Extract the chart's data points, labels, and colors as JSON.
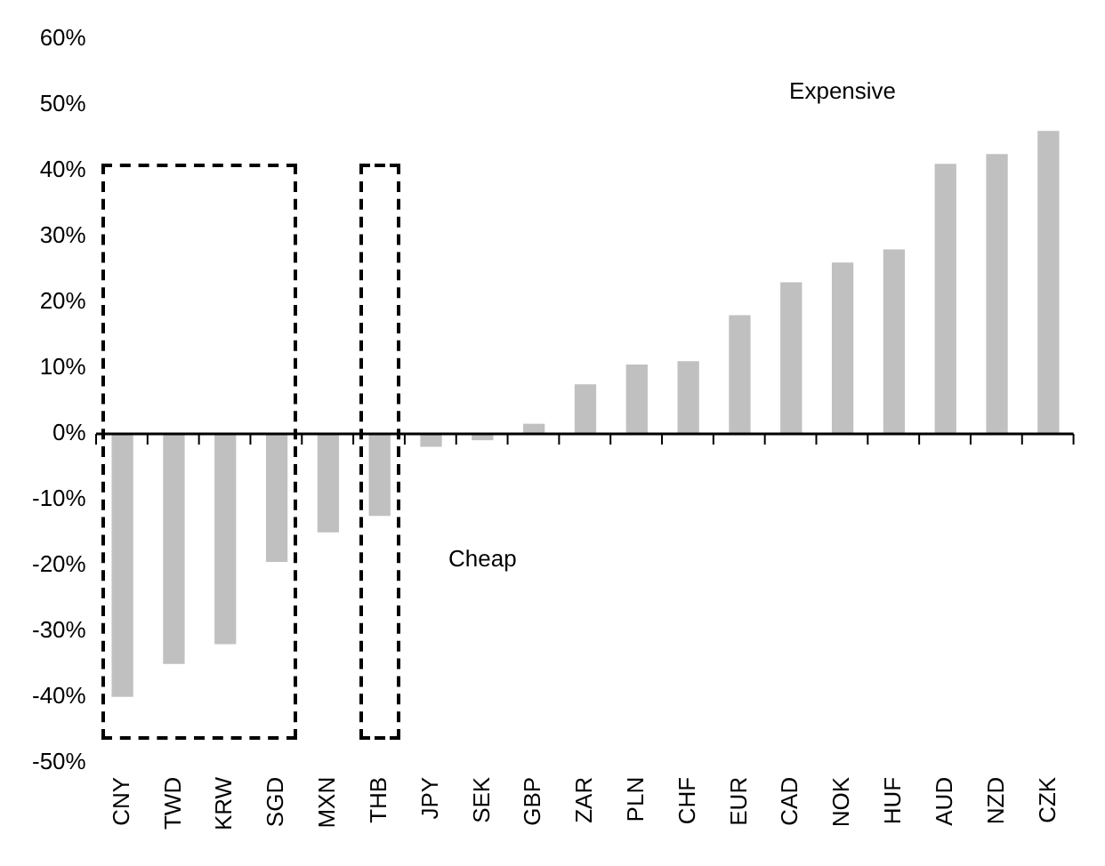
{
  "chart_data": {
    "type": "bar",
    "categories": [
      "CNY",
      "TWD",
      "KRW",
      "SGD",
      "MXN",
      "THB",
      "JPY",
      "SEK",
      "GBP",
      "ZAR",
      "PLN",
      "CHF",
      "EUR",
      "CAD",
      "NOK",
      "HUF",
      "AUD",
      "NZD",
      "CZK"
    ],
    "values": [
      -40,
      -35,
      -32,
      -19.5,
      -15,
      -12.5,
      -2,
      -1,
      1.5,
      7.5,
      10.5,
      11,
      18,
      23,
      26,
      28,
      41,
      42.5,
      46
    ],
    "color": "#c0c0c0",
    "ylim": [
      -50,
      60
    ],
    "yticks": [
      {
        "value": -50,
        "label": "-50%"
      },
      {
        "value": -40,
        "label": "-40%"
      },
      {
        "value": -30,
        "label": "-30%"
      },
      {
        "value": -20,
        "label": "-20%"
      },
      {
        "value": -10,
        "label": "-10%"
      },
      {
        "value": 0,
        "label": "0%"
      },
      {
        "value": 10,
        "label": "10%"
      },
      {
        "value": 20,
        "label": "20%"
      },
      {
        "value": 30,
        "label": "30%"
      },
      {
        "value": 40,
        "label": "40%"
      },
      {
        "value": 50,
        "label": "50%"
      },
      {
        "value": 60,
        "label": "60%"
      }
    ],
    "legend": false,
    "annotations": [
      "Expensive",
      "Cheap"
    ]
  }
}
